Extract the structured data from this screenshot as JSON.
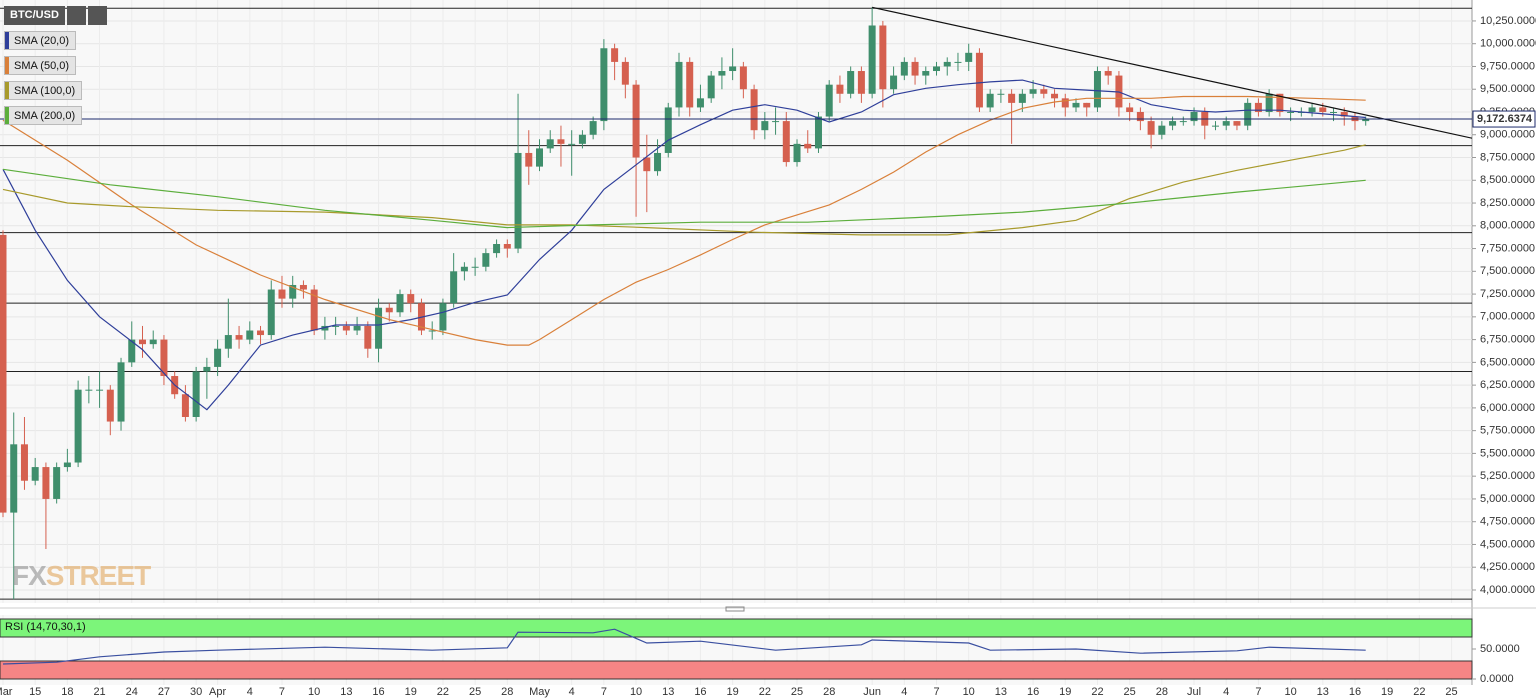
{
  "chart_data": {
    "type": "candlestick",
    "symbol": "BTC/USD",
    "categories": [
      "Mar",
      null,
      null,
      "15",
      null,
      null,
      "18",
      null,
      null,
      "21",
      null,
      null,
      "24",
      null,
      null,
      "27",
      null,
      null,
      "30",
      null,
      "Apr",
      null,
      null,
      "4",
      null,
      null,
      "7",
      null,
      null,
      "10",
      null,
      null,
      "13",
      null,
      null,
      "16",
      null,
      null,
      "19",
      null,
      null,
      "22",
      null,
      null,
      "25",
      null,
      null,
      "28",
      null,
      null,
      "May",
      null,
      null,
      "4",
      null,
      null,
      "7",
      null,
      null,
      "10",
      null,
      null,
      "13",
      null,
      null,
      "16",
      null,
      null,
      "19",
      null,
      null,
      "22",
      null,
      null,
      "25",
      null,
      null,
      "28",
      null,
      null,
      null,
      "Jun",
      null,
      null,
      "4",
      null,
      null,
      "7",
      null,
      null,
      "10",
      null,
      null,
      "13",
      null,
      null,
      "16",
      null,
      null,
      "19",
      null,
      null,
      "22",
      null,
      null,
      "25",
      null,
      null,
      "28",
      null,
      null,
      "Jul",
      null,
      null,
      "4",
      null,
      null,
      "7",
      null,
      null,
      "10",
      null,
      null,
      "13",
      null,
      null,
      "16",
      null,
      null,
      "19",
      null,
      null,
      "22",
      null,
      null,
      "25",
      null,
      null
    ],
    "open": [
      7900,
      4850,
      5600,
      5200,
      5350,
      5000,
      5350,
      5400,
      6200,
      6200,
      6200,
      5850,
      6500,
      6750,
      6700,
      6750,
      6350,
      6150,
      5900,
      6400,
      6450,
      6650,
      6800,
      6750,
      6850,
      6800,
      7300,
      7200,
      7350,
      7300,
      6850,
      6900,
      6900,
      6850,
      6900,
      6650,
      7100,
      7050,
      7250,
      7150,
      6850,
      6850,
      7150,
      7500,
      7550,
      7550,
      7700,
      7800,
      7750,
      8800,
      8650,
      8850,
      8950,
      8900,
      8900,
      9000,
      9150,
      9950,
      9800,
      9550,
      8750,
      8600,
      8800,
      9300,
      9800,
      9300,
      9400,
      9650,
      9700,
      9750,
      9500,
      9050,
      9150,
      9150,
      8700,
      8900,
      8850,
      9200,
      9550,
      9450,
      9700,
      9450,
      10200,
      9500,
      9650,
      9800,
      9650,
      9700,
      9750,
      9800,
      9800,
      9900,
      9300,
      9450,
      9450,
      9350,
      9450,
      9500,
      9450,
      9400,
      9300,
      9350,
      9300,
      9700,
      9650,
      9300,
      9250,
      9150,
      9000,
      9100,
      9150,
      9150,
      9250,
      9100,
      9100,
      9150,
      9100,
      9350,
      9250,
      9450,
      9250,
      9250,
      9250,
      9300,
      9250,
      9250,
      9200,
      9150,
      null,
      null,
      null,
      null,
      null,
      null,
      null,
      null,
      null,
      null
    ],
    "high": [
      7950,
      5950,
      5900,
      5450,
      5400,
      5400,
      5550,
      6300,
      6350,
      6400,
      6250,
      6550,
      6950,
      6900,
      6850,
      6800,
      6400,
      6250,
      6450,
      6550,
      6750,
      7200,
      6900,
      6950,
      6900,
      7400,
      7450,
      7450,
      7400,
      7350,
      7000,
      7000,
      6950,
      7000,
      6950,
      7200,
      7150,
      7300,
      7300,
      7200,
      6950,
      7200,
      7700,
      7600,
      7650,
      7750,
      7850,
      7850,
      9450,
      9050,
      8950,
      9050,
      9100,
      9050,
      9050,
      9200,
      10050,
      10000,
      9850,
      9600,
      9000,
      8950,
      9350,
      9900,
      9850,
      9550,
      9700,
      9850,
      9950,
      9800,
      9550,
      9250,
      9300,
      9250,
      8950,
      9050,
      9250,
      9600,
      9650,
      9750,
      9750,
      10400,
      10250,
      9750,
      9850,
      9850,
      9750,
      9800,
      9850,
      9900,
      10000,
      9950,
      9500,
      9500,
      9500,
      9500,
      9600,
      9550,
      9500,
      9450,
      9400,
      9350,
      9750,
      9750,
      9700,
      9350,
      9300,
      9200,
      9150,
      9200,
      9200,
      9300,
      9300,
      9150,
      9200,
      9150,
      9400,
      9400,
      9500,
      9450,
      9300,
      9300,
      9350,
      9350,
      9300,
      9300,
      9250,
      9200,
      null,
      null,
      null,
      null,
      null,
      null,
      null,
      null,
      null,
      null
    ],
    "low": [
      4800,
      3900,
      5100,
      5150,
      4450,
      4950,
      5300,
      5350,
      6050,
      6000,
      5700,
      5750,
      6450,
      6550,
      6650,
      6250,
      6100,
      5850,
      5850,
      6100,
      6350,
      6550,
      6650,
      6700,
      6700,
      6750,
      7100,
      7100,
      7200,
      6800,
      6750,
      6800,
      6800,
      6800,
      6550,
      6500,
      6950,
      7000,
      7050,
      6800,
      6750,
      6800,
      7100,
      7400,
      7450,
      7500,
      7650,
      7650,
      7700,
      8450,
      8600,
      8800,
      8650,
      8550,
      8850,
      8950,
      9050,
      9600,
      9400,
      8100,
      8150,
      8550,
      8750,
      9200,
      9200,
      9250,
      9350,
      9500,
      9600,
      9400,
      8950,
      8950,
      9000,
      8650,
      8650,
      8800,
      8800,
      9150,
      9350,
      9400,
      9350,
      9400,
      9300,
      9450,
      9600,
      9550,
      9550,
      9650,
      9650,
      9700,
      9700,
      9250,
      9250,
      9350,
      8900,
      9250,
      9400,
      9400,
      9300,
      9200,
      9250,
      9200,
      9250,
      9550,
      9200,
      9150,
      9050,
      8850,
      8950,
      9050,
      9100,
      9100,
      8950,
      9050,
      9050,
      9050,
      9050,
      9200,
      9200,
      9200,
      9150,
      9200,
      9200,
      9200,
      9150,
      9100,
      9050,
      9100,
      null,
      null,
      null,
      null,
      null,
      null,
      null,
      null,
      null,
      null
    ],
    "close": [
      4850,
      5600,
      5200,
      5350,
      5000,
      5350,
      5400,
      6200,
      6200,
      6200,
      5850,
      6500,
      6750,
      6700,
      6750,
      6350,
      6150,
      5900,
      6400,
      6450,
      6650,
      6800,
      6750,
      6850,
      6800,
      7300,
      7200,
      7350,
      7300,
      6850,
      6900,
      6900,
      6850,
      6900,
      6650,
      7100,
      7050,
      7250,
      7150,
      6850,
      6850,
      7150,
      7500,
      7550,
      7550,
      7700,
      7800,
      7750,
      8800,
      8650,
      8850,
      8950,
      8900,
      8900,
      9000,
      9150,
      9950,
      9800,
      9550,
      8750,
      8600,
      8800,
      9300,
      9800,
      9300,
      9400,
      9650,
      9700,
      9750,
      9500,
      9050,
      9150,
      9150,
      8700,
      8900,
      8850,
      9200,
      9550,
      9450,
      9700,
      9450,
      10200,
      9500,
      9650,
      9800,
      9650,
      9700,
      9750,
      9800,
      9800,
      9900,
      9300,
      9450,
      9450,
      9350,
      9450,
      9500,
      9450,
      9400,
      9300,
      9350,
      9300,
      9700,
      9650,
      9300,
      9250,
      9150,
      9000,
      9100,
      9150,
      9150,
      9250,
      9100,
      9100,
      9150,
      9100,
      9350,
      9250,
      9450,
      9250,
      9250,
      9250,
      9300,
      9250,
      9250,
      9200,
      9150,
      9170,
      null,
      null,
      null,
      null,
      null,
      null,
      null,
      null,
      null,
      null
    ],
    "up_color": "#3f8e6c",
    "down_color": "#d5604f",
    "ylim": [
      3890,
      10480
    ],
    "yticks": [
      {
        "value": 4000,
        "label": "4,000.0000"
      },
      {
        "value": 4250,
        "label": "4,250.0000"
      },
      {
        "value": 4500,
        "label": "4,500.0000"
      },
      {
        "value": 4750,
        "label": "4,750.0000"
      },
      {
        "value": 5000,
        "label": "5,000.0000"
      },
      {
        "value": 5250,
        "label": "5,250.0000"
      },
      {
        "value": 5500,
        "label": "5,500.0000"
      },
      {
        "value": 5750,
        "label": "5,750.0000"
      },
      {
        "value": 6000,
        "label": "6,000.0000"
      },
      {
        "value": 6250,
        "label": "6,250.0000"
      },
      {
        "value": 6500,
        "label": "6,500.0000"
      },
      {
        "value": 6750,
        "label": "6,750.0000"
      },
      {
        "value": 7000,
        "label": "7,000.0000"
      },
      {
        "value": 7250,
        "label": "7,250.0000"
      },
      {
        "value": 7500,
        "label": "7,500.0000"
      },
      {
        "value": 7750,
        "label": "7,750.0000"
      },
      {
        "value": 8000,
        "label": "8,000.0000"
      },
      {
        "value": 8250,
        "label": "8,250.0000"
      },
      {
        "value": 8500,
        "label": "8,500.0000"
      },
      {
        "value": 8750,
        "label": "8,750.0000"
      },
      {
        "value": 9000,
        "label": "9,000.0000"
      },
      {
        "value": 9250,
        "label": "9,250.0000"
      },
      {
        "value": 9500,
        "label": "9,500.0000"
      },
      {
        "value": 9750,
        "label": "9,750.0000"
      },
      {
        "value": 10000,
        "label": "10,000.0000"
      },
      {
        "value": 10250,
        "label": "10,250.0000"
      }
    ],
    "grid": true,
    "series": [
      {
        "name": "SMA (20,0)",
        "color": "#2f3f9a",
        "x": [
          0,
          3,
          6,
          9,
          13,
          16,
          19,
          21,
          24,
          27,
          31,
          35,
          38,
          41,
          44,
          47,
          50,
          53,
          56,
          59,
          62,
          65,
          68,
          71,
          74,
          77,
          80,
          83,
          86,
          89,
          92,
          95,
          98,
          101,
          104,
          107,
          110,
          113,
          116,
          119,
          122,
          125,
          127
        ],
        "values": [
          8620,
          7950,
          7400,
          7000,
          6640,
          6250,
          5980,
          6250,
          6690,
          6800,
          6910,
          6910,
          6970,
          7050,
          7160,
          7240,
          7630,
          7950,
          8400,
          8670,
          8940,
          9110,
          9270,
          9330,
          9270,
          9140,
          9250,
          9440,
          9510,
          9550,
          9580,
          9600,
          9510,
          9490,
          9470,
          9330,
          9270,
          9250,
          9270,
          9270,
          9240,
          9210,
          9190
        ]
      },
      {
        "name": "SMA (50,0)",
        "color": "#d9803a",
        "x": [
          0,
          6,
          12,
          18,
          24,
          30,
          36,
          40,
          44,
          47,
          49,
          50,
          53,
          56,
          59,
          62,
          65,
          68,
          71,
          74,
          77,
          80,
          83,
          86,
          89,
          92,
          95,
          98,
          101,
          104,
          107,
          110,
          116,
          122,
          127
        ],
        "values": [
          9160,
          8720,
          8230,
          7790,
          7460,
          7190,
          6970,
          6860,
          6750,
          6690,
          6690,
          6750,
          6970,
          7190,
          7380,
          7520,
          7680,
          7850,
          8010,
          8120,
          8230,
          8400,
          8590,
          8810,
          9000,
          9160,
          9290,
          9360,
          9400,
          9400,
          9400,
          9420,
          9420,
          9400,
          9380
        ]
      },
      {
        "name": "SMA (100,0)",
        "color": "#a89a2c",
        "x": [
          0,
          6,
          12,
          20,
          30,
          40,
          47,
          53,
          60,
          70,
          80,
          88,
          95,
          100,
          105,
          110,
          115,
          120,
          125,
          127
        ],
        "values": [
          8400,
          8250,
          8210,
          8170,
          8150,
          8090,
          8010,
          8010,
          7980,
          7930,
          7900,
          7900,
          7980,
          8060,
          8300,
          8480,
          8610,
          8720,
          8830,
          8890
        ]
      },
      {
        "name": "SMA (200,0)",
        "color": "#5cae3c",
        "x": [
          0,
          10,
          20,
          30,
          40,
          47,
          55,
          65,
          75,
          85,
          95,
          105,
          115,
          127
        ],
        "values": [
          8620,
          8450,
          8320,
          8170,
          8060,
          7980,
          8010,
          8040,
          8040,
          8090,
          8150,
          8250,
          8370,
          8500
        ]
      }
    ],
    "levels": [
      10390,
      8880,
      7925,
      7150,
      6400,
      3900
    ],
    "trendline": {
      "x": [
        81,
        137
      ],
      "values": [
        10400,
        8960
      ]
    },
    "last_price": {
      "value": 9172.6374,
      "label": "9,172.6374"
    },
    "watermark": [
      "FX",
      "STREET"
    ],
    "rsi": {
      "name": "RSI (14,70,30,1)",
      "color": "#3a4fa0",
      "x": [
        0,
        5,
        9,
        15,
        20,
        30,
        40,
        47,
        48,
        55,
        57,
        60,
        65,
        72,
        80,
        81,
        90,
        92,
        100,
        106,
        115,
        118,
        127
      ],
      "values": [
        25,
        28,
        37,
        45,
        48,
        53,
        48,
        52,
        78,
        77,
        83,
        60,
        63,
        48,
        57,
        65,
        60,
        48,
        50,
        43,
        47,
        53,
        48
      ],
      "ylim": [
        0,
        100
      ],
      "yticks": [
        {
          "value": 50,
          "label": "50.0000"
        },
        {
          "value": 0,
          "label": "0.0000"
        }
      ],
      "upper": 70,
      "lower": 30
    }
  }
}
